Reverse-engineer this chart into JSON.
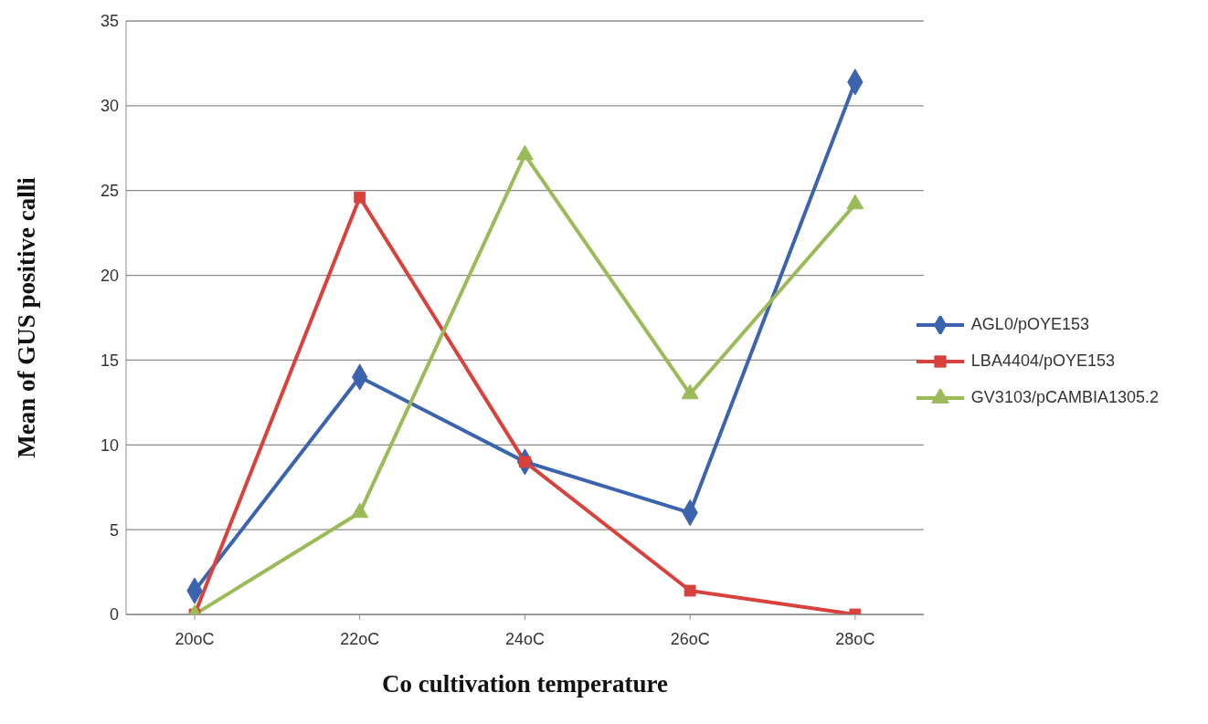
{
  "chart_data": {
    "type": "line",
    "xlabel": "Co cultivation temperature",
    "ylabel": "Mean of GUS positive calli",
    "categories": [
      "20oC",
      "22oC",
      "24oC",
      "26oC",
      "28oC"
    ],
    "series": [
      {
        "name": "AGL0/pOYE153",
        "color": "#3c64ae",
        "marker": "diamond",
        "values": [
          1.4,
          14,
          9,
          6,
          31.4
        ]
      },
      {
        "name": "LBA4404/pOYE153",
        "color": "#d9413d",
        "marker": "square",
        "values": [
          0,
          24.6,
          9,
          1.4,
          0
        ]
      },
      {
        "name": "GV3103/pCAMBIA1305.2",
        "color": "#9bbb59",
        "marker": "triangle",
        "values": [
          0,
          6,
          27.1,
          13,
          24.2
        ]
      }
    ],
    "ylim": [
      0,
      35
    ],
    "yticks": [
      0,
      5,
      10,
      15,
      20,
      25,
      30,
      35
    ],
    "grid": "y",
    "legend": "right"
  }
}
